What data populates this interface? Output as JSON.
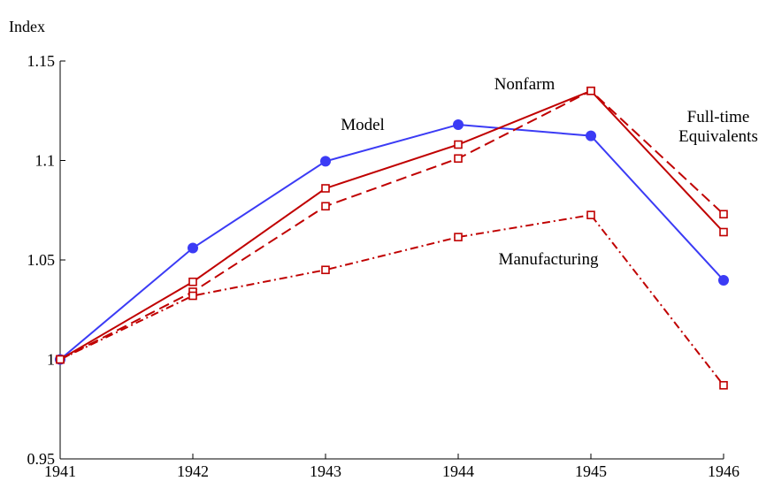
{
  "chart_data": {
    "type": "line",
    "y_label": "Index",
    "x": [
      1941,
      1942,
      1943,
      1944,
      1945,
      1946
    ],
    "xlim": [
      1941,
      1946
    ],
    "xticks": [
      1941,
      1942,
      1943,
      1944,
      1945,
      1946
    ],
    "ylim": [
      0.95,
      1.15
    ],
    "yticks": [
      0.95,
      1,
      1.05,
      1.1,
      1.15
    ],
    "series": [
      {
        "name": "Model",
        "color": "#3b3bf5",
        "linestyle": "solid",
        "marker": "circle",
        "values": [
          1.0,
          1.056,
          1.0996,
          1.118,
          1.1124,
          1.0398
        ]
      },
      {
        "name": "Nonfarm",
        "color": "#c00000",
        "linestyle": "solid",
        "marker": "square",
        "values": [
          1.0,
          1.039,
          1.086,
          1.108,
          1.135,
          1.064
        ]
      },
      {
        "name": "Full-time Equivalents",
        "color": "#c00000",
        "linestyle": "dashed",
        "marker": "square",
        "values": [
          1.0,
          1.034,
          1.077,
          1.101,
          1.135,
          1.073
        ]
      },
      {
        "name": "Manufacturing",
        "color": "#c00000",
        "linestyle": "dashdot",
        "marker": "square",
        "values": [
          1.0,
          1.032,
          1.045,
          1.0615,
          1.0726,
          0.987
        ]
      }
    ]
  }
}
